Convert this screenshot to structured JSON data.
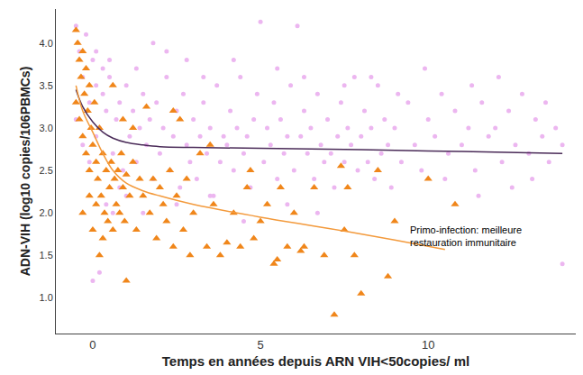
{
  "chart_data": {
    "type": "scatter",
    "x_label": "Temps en années depuis ARN VIH<50copies/ ml",
    "y_label": "ADN-VIH (log10 copies/106PBMCs)",
    "xlim": [
      -1.1,
      14.4
    ],
    "ylim": [
      0.58,
      4.4
    ],
    "xticks": [
      0,
      5,
      10
    ],
    "yticks": [
      {
        "value": 1,
        "label": "1.0"
      },
      1.5,
      {
        "value": 2,
        "label": "2.0"
      },
      2.5,
      {
        "value": 3,
        "label": "3.0"
      },
      3.5,
      {
        "value": 4,
        "label": "4.0"
      }
    ],
    "grid": false,
    "annotations": [
      {
        "lines": [
          "Primo-infection: meilleure",
          "restauration immunitaire"
        ],
        "x": 9.4,
        "y": 1.73
      }
    ],
    "series": [
      {
        "type": "scatter",
        "color": "#ecb6f0",
        "marker": "circle",
        "x": [
          -0.5,
          -0.4,
          -0.3,
          -0.2,
          -0.1,
          0,
          0.1,
          0.2,
          0.3,
          0.4,
          -0.5,
          -0.3,
          -0.1,
          0.1,
          0.3,
          0.5,
          0.6,
          0.7,
          0.8,
          0.9,
          1.0,
          1.1,
          1.2,
          1.3,
          1.4,
          1.5,
          1.6,
          1.7,
          1.8,
          1.9,
          2.0,
          2.1,
          2.2,
          2.3,
          2.4,
          2.5,
          2.6,
          2.7,
          2.8,
          2.9,
          3.0,
          3.1,
          3.2,
          3.3,
          3.4,
          3.5,
          3.6,
          3.7,
          3.8,
          3.9,
          4.0,
          4.1,
          4.2,
          4.3,
          4.4,
          4.5,
          4.6,
          4.7,
          4.8,
          4.9,
          5.0,
          5.1,
          5.2,
          5.3,
          5.4,
          5.5,
          5.6,
          5.7,
          5.8,
          5.9,
          6.0,
          6.1,
          6.2,
          6.3,
          6.4,
          6.5,
          6.6,
          6.7,
          6.8,
          6.9,
          7.0,
          7.1,
          7.2,
          7.3,
          7.4,
          7.5,
          7.6,
          7.7,
          7.8,
          7.9,
          8.0,
          8.1,
          8.2,
          8.3,
          8.4,
          8.5,
          8.6,
          8.7,
          8.8,
          8.9,
          9.0,
          9.2,
          9.4,
          9.6,
          9.8,
          10.0,
          10.2,
          10.4,
          10.6,
          10.8,
          11.0,
          11.2,
          11.4,
          11.6,
          11.8,
          12.0,
          12.2,
          12.4,
          12.6,
          12.8,
          13.0,
          13.2,
          13.4,
          13.6,
          13.8,
          14.0,
          13.1,
          12.5,
          11.5,
          10.5,
          0.0,
          0.2,
          0.4,
          0.6,
          0.8,
          1.0,
          1.5,
          2.5,
          3.5,
          4.5,
          0.1,
          0.5,
          1.3,
          2.2,
          3.3,
          4.2,
          5.5,
          6.3,
          7.5,
          14.0,
          8.3,
          9.1,
          9.9,
          11.3,
          12.1,
          13.5,
          5.8,
          6.7,
          2.8,
          1.8
        ],
        "values": [
          4.2,
          3.9,
          3.6,
          4.1,
          3.3,
          3.8,
          3.5,
          3.0,
          3.7,
          3.2,
          3.1,
          2.8,
          2.6,
          2.9,
          3.4,
          3.6,
          2.7,
          3.1,
          3.3,
          2.5,
          3.5,
          2.9,
          3.2,
          2.6,
          3.0,
          3.4,
          2.8,
          3.1,
          2.4,
          3.3,
          2.7,
          3.0,
          3.6,
          2.5,
          2.9,
          3.2,
          2.3,
          3.4,
          2.8,
          2.6,
          3.1,
          2.4,
          2.9,
          3.3,
          2.7,
          3.0,
          2.2,
          3.5,
          2.6,
          2.9,
          2.8,
          3.2,
          2.5,
          3.0,
          3.6,
          2.7,
          2.9,
          2.3,
          3.1,
          3.4,
          4.25,
          2.6,
          3.0,
          2.8,
          3.3,
          2.4,
          3.1,
          2.7,
          2.9,
          3.5,
          2.5,
          4.2,
          2.9,
          3.2,
          2.7,
          3.0,
          2.4,
          3.4,
          2.8,
          2.6,
          3.1,
          2.7,
          2.3,
          2.9,
          3.3,
          2.6,
          3.0,
          2.8,
          3.6,
          2.5,
          2.9,
          3.2,
          2.6,
          3.0,
          2.4,
          3.5,
          2.7,
          3.1,
          2.8,
          2.3,
          3.0,
          2.6,
          3.3,
          2.8,
          2.5,
          3.1,
          2.9,
          3.4,
          2.7,
          3.2,
          2.8,
          3.0,
          2.5,
          3.3,
          2.9,
          3.0,
          2.6,
          3.2,
          2.8,
          3.4,
          2.7,
          3.1,
          2.9,
          2.6,
          3.0,
          2.8,
          2.4,
          2.3,
          2.2,
          2.4,
          1.2,
          1.3,
          2.1,
          2.0,
          2.3,
          2.2,
          2.0,
          2.1,
          2.2,
          1.9,
          3.9,
          3.8,
          3.7,
          3.9,
          3.6,
          3.8,
          3.7,
          3.6,
          3.5,
          1.4,
          3.6,
          3.4,
          3.7,
          3.5,
          3.6,
          3.3,
          2.1,
          2.0,
          3.8,
          4.0
        ]
      },
      {
        "type": "scatter",
        "color": "#f0861a",
        "marker": "triangle-up",
        "x": [
          -0.5,
          -0.45,
          -0.4,
          -0.35,
          -0.3,
          -0.25,
          -0.2,
          -0.15,
          -0.1,
          -0.05,
          -0.5,
          -0.4,
          -0.3,
          -0.2,
          -0.1,
          0,
          0.05,
          0.1,
          0.15,
          0.2,
          0.25,
          0.3,
          0.35,
          0.4,
          0.45,
          0.5,
          0.55,
          0.6,
          0.65,
          0.7,
          0.75,
          0.8,
          0.85,
          0.9,
          0.95,
          1.0,
          1.1,
          1.2,
          1.3,
          1.4,
          1.5,
          1.6,
          1.7,
          1.8,
          1.9,
          2.0,
          2.1,
          2.2,
          2.3,
          2.4,
          2.5,
          2.6,
          2.7,
          2.8,
          2.9,
          3.0,
          3.2,
          3.4,
          3.6,
          3.8,
          4.0,
          4.2,
          4.4,
          4.6,
          4.8,
          5.0,
          5.2,
          5.4,
          5.6,
          5.8,
          6.0,
          6.3,
          6.6,
          6.9,
          7.2,
          7.5,
          7.8,
          8.0,
          8.5,
          8.8,
          0.0,
          0.1,
          0.2,
          0.3,
          1.0,
          -0.3,
          -0.1,
          0.9,
          10.0,
          10.8,
          7.4,
          7.6,
          9.0,
          3.5,
          4.7,
          5.5,
          6.2,
          2.4,
          1.2,
          0.6
        ],
        "values": [
          4.15,
          4.0,
          3.8,
          3.6,
          3.9,
          3.4,
          3.7,
          3.2,
          3.5,
          3.0,
          3.3,
          3.1,
          2.9,
          2.7,
          2.5,
          2.8,
          3.3,
          2.6,
          2.4,
          3.0,
          2.2,
          2.7,
          2.0,
          2.5,
          1.9,
          2.3,
          2.6,
          1.8,
          2.4,
          2.1,
          2.5,
          2.0,
          2.7,
          2.3,
          1.9,
          2.45,
          2.2,
          2.6,
          1.8,
          2.4,
          2.2,
          3.25,
          2.0,
          2.4,
          1.7,
          2.3,
          2.1,
          1.9,
          2.5,
          1.6,
          2.2,
          3.1,
          1.8,
          2.4,
          1.5,
          2.0,
          2.7,
          1.6,
          2.1,
          1.5,
          1.65,
          2.0,
          1.6,
          2.3,
          1.7,
          1.9,
          2.1,
          1.4,
          2.3,
          1.6,
          2.0,
          1.6,
          2.3,
          1.5,
          0.8,
          1.8,
          1.5,
          1.05,
          2.5,
          1.25,
          1.8,
          2.1,
          1.5,
          1.7,
          1.2,
          2.0,
          2.2,
          3.1,
          2.4,
          2.1,
          2.55,
          2.3,
          1.9,
          2.8,
          2.5,
          1.45,
          1.55,
          3.2,
          3.0,
          3.5
        ]
      },
      {
        "type": "line",
        "color": "#4a2b58",
        "line_style": "solid",
        "x": [
          -0.5,
          -0.3,
          0,
          0.3,
          0.6,
          1,
          1.5,
          2,
          3,
          5,
          8,
          10,
          12,
          14
        ],
        "values": [
          3.45,
          3.25,
          3.07,
          2.95,
          2.88,
          2.83,
          2.8,
          2.78,
          2.77,
          2.76,
          2.745,
          2.73,
          2.715,
          2.7
        ]
      },
      {
        "type": "line",
        "color": "#f39a3c",
        "line_style": "solid",
        "x": [
          -0.5,
          -0.3,
          0,
          0.3,
          0.6,
          1,
          1.5,
          2,
          3,
          5,
          7,
          9,
          10.5
        ],
        "values": [
          3.5,
          3.2,
          2.95,
          2.7,
          2.5,
          2.35,
          2.26,
          2.2,
          2.1,
          1.95,
          1.82,
          1.68,
          1.57
        ]
      }
    ]
  }
}
